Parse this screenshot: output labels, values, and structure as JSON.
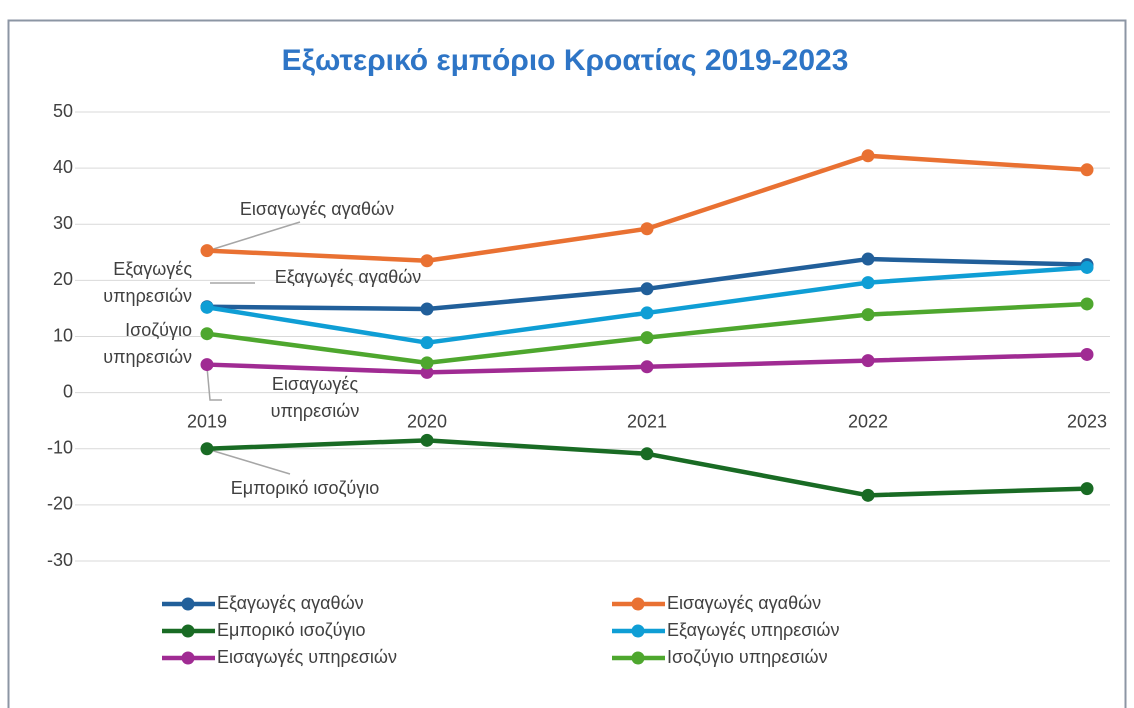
{
  "chart_data": {
    "type": "line",
    "title": "Εξωτερικό εμπόριο Κροατίας 2019-2023",
    "categories": [
      "2019",
      "2020",
      "2021",
      "2022",
      "2023"
    ],
    "ylim": [
      -30,
      50
    ],
    "yticks": [
      -30,
      -20,
      -10,
      0,
      10,
      20,
      30,
      40,
      50
    ],
    "grid": true,
    "legend": "bottom",
    "series": [
      {
        "name": "Εξαγωγές αγαθών",
        "color": "#215f9a",
        "values": [
          15.3,
          14.9,
          18.5,
          23.8,
          22.8
        ]
      },
      {
        "name": "Εισαγωγές αγαθών",
        "color": "#e97132",
        "values": [
          25.3,
          23.5,
          29.2,
          42.2,
          39.7
        ]
      },
      {
        "name": "Εμπορικό ισοζύγιο",
        "color": "#196b24",
        "values": [
          -10.0,
          -8.5,
          -10.9,
          -18.3,
          -17.1
        ]
      },
      {
        "name": "Εξαγωγές υπηρεσιών",
        "color": "#0f9ed5",
        "values": [
          15.2,
          8.9,
          14.2,
          19.6,
          22.3
        ]
      },
      {
        "name": "Εισαγωγές υπηρεσιών",
        "color": "#a02b93",
        "values": [
          5.0,
          3.6,
          4.6,
          5.7,
          6.8
        ]
      },
      {
        "name": "Ισοζύγιο υπηρεσιών",
        "color": "#4ea72e",
        "values": [
          10.5,
          5.3,
          9.8,
          13.9,
          15.8
        ]
      }
    ],
    "annotations": [
      {
        "text": [
          "Εισαγωγές αγαθών"
        ]
      },
      {
        "text": [
          "Εξαγωγές αγαθών"
        ]
      },
      {
        "text": [
          "Εξαγωγές",
          "υπηρεσιών"
        ]
      },
      {
        "text": [
          "Ισοζύγιο",
          "υπηρεσιών"
        ]
      },
      {
        "text": [
          "Εισαγωγές",
          "υπηρεσιών"
        ]
      },
      {
        "text": [
          "Εμπορικό ισοζύγιο"
        ]
      }
    ]
  }
}
